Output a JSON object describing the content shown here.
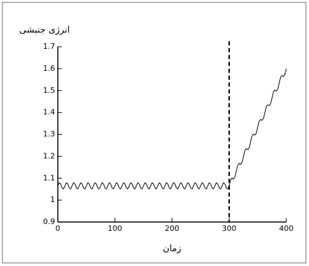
{
  "chart_data": {
    "type": "line",
    "ylabel": "انرژی جنبشی",
    "xlabel": "زمان",
    "xlim": [
      0,
      400
    ],
    "xticks": [
      0,
      100,
      200,
      300,
      400
    ],
    "ylim": [
      0.9,
      1.7
    ],
    "yticks": [
      0.9,
      1,
      1.1,
      1.2,
      1.3,
      1.4,
      1.5,
      1.6,
      1.7
    ],
    "reference_lines": [
      {
        "x": 300,
        "style": "dashed"
      }
    ],
    "series": [
      {
        "color": "#000000",
        "x": [
          0,
          2.5,
          5,
          7.5,
          10,
          12.5,
          15,
          17.5,
          20,
          22.5,
          25,
          27.5,
          30,
          32.5,
          35,
          37.5,
          40,
          42.5,
          45,
          47.5,
          50,
          52.5,
          55,
          57.5,
          60,
          62.5,
          65,
          67.5,
          70,
          72.5,
          75,
          77.5,
          80,
          82.5,
          85,
          87.5,
          90,
          92.5,
          95,
          97.5,
          100,
          102.5,
          105,
          107.5,
          110,
          112.5,
          115,
          117.5,
          120,
          122.5,
          125,
          127.5,
          130,
          132.5,
          135,
          137.5,
          140,
          142.5,
          145,
          147.5,
          150,
          152.5,
          155,
          157.5,
          160,
          162.5,
          165,
          167.5,
          170,
          172.5,
          175,
          177.5,
          180,
          182.5,
          185,
          187.5,
          190,
          192.5,
          195,
          197.5,
          200,
          202.5,
          205,
          207.5,
          210,
          212.5,
          215,
          217.5,
          220,
          222.5,
          225,
          227.5,
          230,
          232.5,
          235,
          237.5,
          240,
          242.5,
          245,
          247.5,
          250,
          252.5,
          255,
          257.5,
          260,
          262.5,
          265,
          267.5,
          270,
          272.5,
          275,
          277.5,
          280,
          282.5,
          285,
          287.5,
          290,
          292.5,
          295,
          297.5,
          300,
          302.5,
          305,
          307.5,
          310,
          312.5,
          315,
          317.5,
          320,
          322.5,
          325,
          327.5,
          330,
          332.5,
          335,
          337.5,
          340,
          342.5,
          345,
          347.5,
          350,
          352.5,
          355,
          357.5,
          360,
          362.5,
          365,
          367.5,
          370,
          372.5,
          375,
          377.5,
          380,
          382.5,
          385,
          387.5,
          390,
          392.5,
          395,
          397.5,
          400
        ],
        "values": [
          1.065,
          1.079,
          1.074,
          1.056,
          1.051,
          1.065,
          1.079,
          1.074,
          1.056,
          1.051,
          1.065,
          1.079,
          1.074,
          1.056,
          1.051,
          1.065,
          1.079,
          1.074,
          1.056,
          1.051,
          1.065,
          1.079,
          1.074,
          1.056,
          1.051,
          1.065,
          1.079,
          1.074,
          1.056,
          1.051,
          1.065,
          1.079,
          1.074,
          1.056,
          1.051,
          1.065,
          1.079,
          1.074,
          1.056,
          1.051,
          1.065,
          1.079,
          1.074,
          1.056,
          1.051,
          1.065,
          1.079,
          1.074,
          1.056,
          1.051,
          1.065,
          1.079,
          1.074,
          1.056,
          1.051,
          1.065,
          1.079,
          1.074,
          1.056,
          1.051,
          1.065,
          1.079,
          1.074,
          1.056,
          1.051,
          1.065,
          1.079,
          1.074,
          1.056,
          1.051,
          1.065,
          1.079,
          1.074,
          1.056,
          1.051,
          1.065,
          1.079,
          1.074,
          1.056,
          1.051,
          1.065,
          1.079,
          1.074,
          1.056,
          1.051,
          1.065,
          1.079,
          1.074,
          1.056,
          1.051,
          1.065,
          1.079,
          1.074,
          1.056,
          1.051,
          1.065,
          1.079,
          1.074,
          1.056,
          1.051,
          1.065,
          1.079,
          1.074,
          1.056,
          1.051,
          1.065,
          1.079,
          1.074,
          1.056,
          1.051,
          1.065,
          1.079,
          1.074,
          1.056,
          1.051,
          1.065,
          1.079,
          1.074,
          1.056,
          1.051,
          1.065,
          1.092,
          1.101,
          1.096,
          1.105,
          1.132,
          1.159,
          1.168,
          1.163,
          1.171,
          1.199,
          1.226,
          1.235,
          1.23,
          1.238,
          1.266,
          1.293,
          1.301,
          1.297,
          1.305,
          1.333,
          1.36,
          1.368,
          1.364,
          1.372,
          1.399,
          1.427,
          1.435,
          1.431,
          1.439,
          1.466,
          1.494,
          1.502,
          1.497,
          1.506,
          1.533,
          1.561,
          1.569,
          1.564,
          1.573,
          1.6
        ]
      }
    ]
  }
}
